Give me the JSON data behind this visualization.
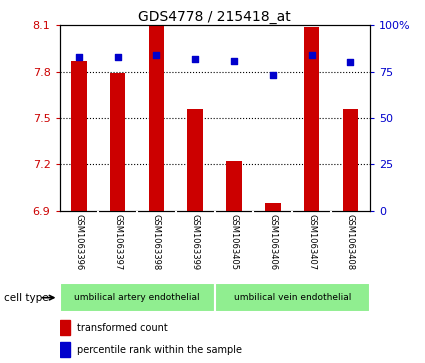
{
  "title": "GDS4778 / 215418_at",
  "samples": [
    "GSM1063396",
    "GSM1063397",
    "GSM1063398",
    "GSM1063399",
    "GSM1063405",
    "GSM1063406",
    "GSM1063407",
    "GSM1063408"
  ],
  "bar_values": [
    7.87,
    7.79,
    8.1,
    7.56,
    7.22,
    6.95,
    8.09,
    7.56
  ],
  "percentile_values": [
    83,
    83,
    84,
    82,
    81,
    73,
    84,
    80
  ],
  "ylim_left": [
    6.9,
    8.1
  ],
  "yticks_left": [
    6.9,
    7.2,
    7.5,
    7.8,
    8.1
  ],
  "yticks_right": [
    0,
    25,
    50,
    75,
    100
  ],
  "ylim_right": [
    0,
    100
  ],
  "bar_color": "#cc0000",
  "dot_color": "#0000cc",
  "cell_groups": [
    {
      "label": "umbilical artery endothelial",
      "indices": [
        0,
        1,
        2,
        3
      ],
      "color": "#90ee90"
    },
    {
      "label": "umbilical vein endothelial",
      "indices": [
        4,
        5,
        6,
        7
      ],
      "color": "#90ee90"
    }
  ],
  "cell_type_label": "cell type",
  "legend_bar_label": "transformed count",
  "legend_dot_label": "percentile rank within the sample",
  "sample_box_color": "#d0d0d0",
  "bar_base": 6.9,
  "dot_gridlines": [
    7.8,
    7.5,
    7.2
  ],
  "bar_width": 0.4
}
